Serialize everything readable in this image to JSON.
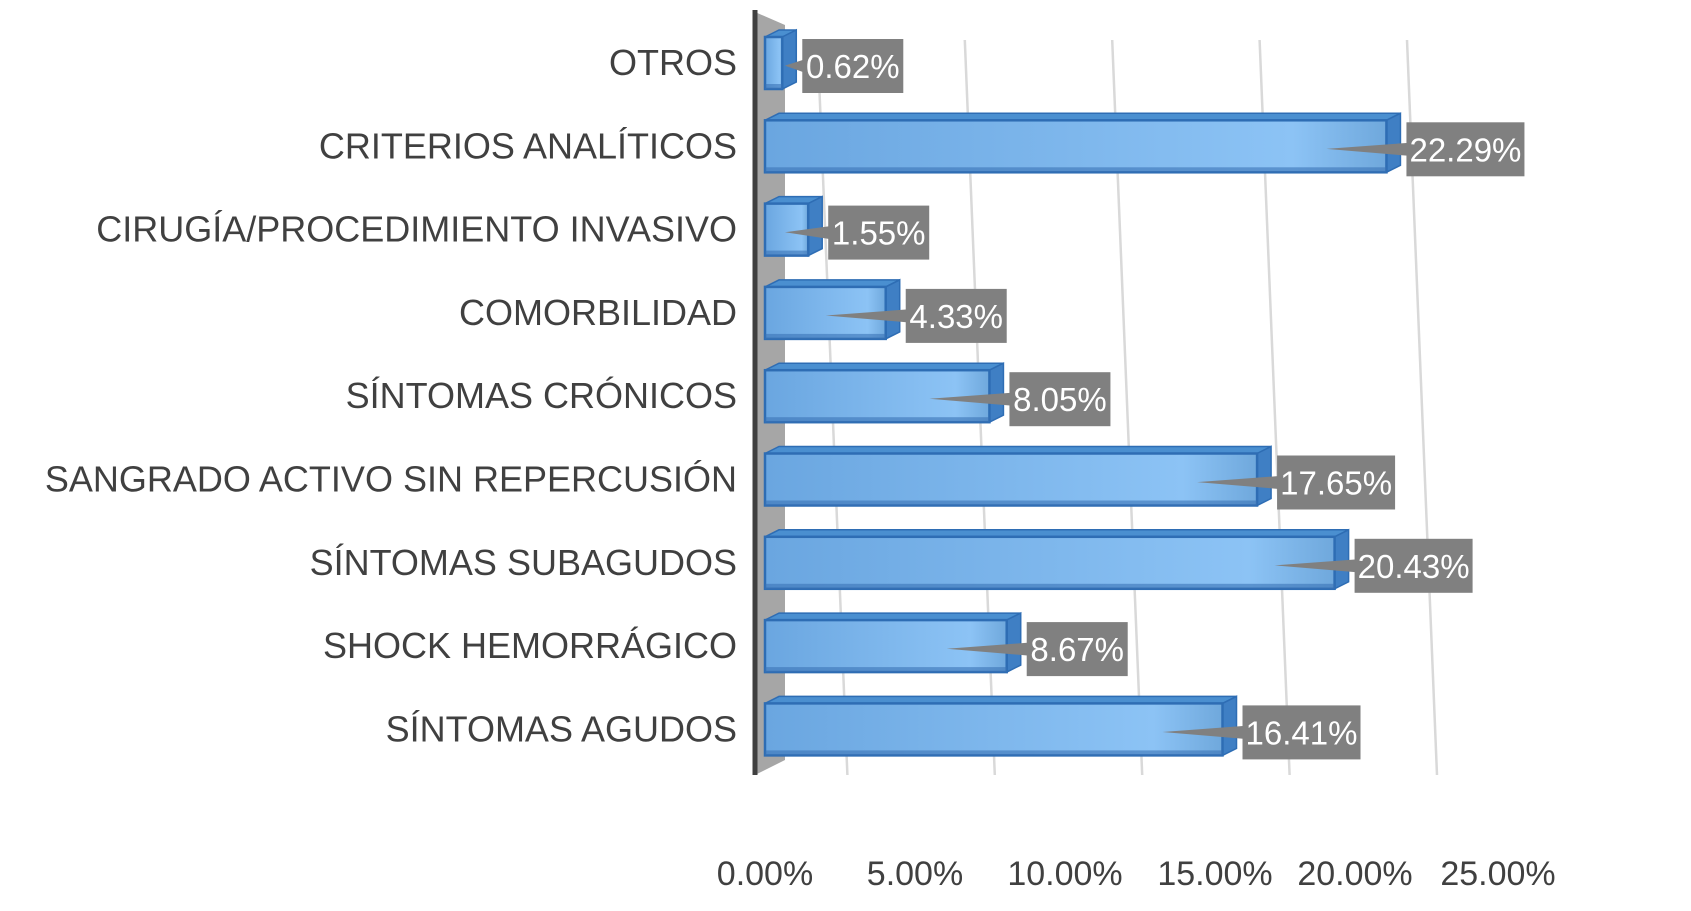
{
  "chart_data": {
    "type": "bar",
    "orientation": "horizontal",
    "style": "3d",
    "categories": [
      "OTROS",
      "CRITERIOS ANALÍTICOS",
      "CIRUGÍA/PROCEDIMIENTO INVASIVO",
      "COMORBILIDAD",
      "SÍNTOMAS CRÓNICOS",
      "SANGRADO ACTIVO SIN REPERCUSIÓN",
      "SÍNTOMAS SUBAGUDOS",
      "SHOCK HEMORRÁGICO",
      "SÍNTOMAS AGUDOS"
    ],
    "values": [
      0.62,
      22.29,
      1.55,
      4.33,
      8.05,
      17.65,
      20.43,
      8.67,
      16.41
    ],
    "data_labels": [
      "0.62%",
      "22.29%",
      "1.55%",
      "4.33%",
      "8.05%",
      "17.65%",
      "20.43%",
      "8.67%",
      "16.41%"
    ],
    "xlim": [
      0,
      25
    ],
    "x_ticks": [
      0,
      5,
      10,
      15,
      20,
      25
    ],
    "x_tick_labels": [
      "0.00%",
      "5.00%",
      "10.00%",
      "15.00%",
      "20.00%",
      "25.00%"
    ],
    "grid": true,
    "legend": false,
    "colors": {
      "bar_fill": "#6fa8dc",
      "bar_top": "#4a8fd0",
      "bar_edge": "#2e6db4",
      "label_bg": "#808080",
      "label_text": "#ffffff",
      "axis": "#404040",
      "wall": "#a6a6a6",
      "grid": "#d9d9d9",
      "text": "#404040"
    }
  }
}
